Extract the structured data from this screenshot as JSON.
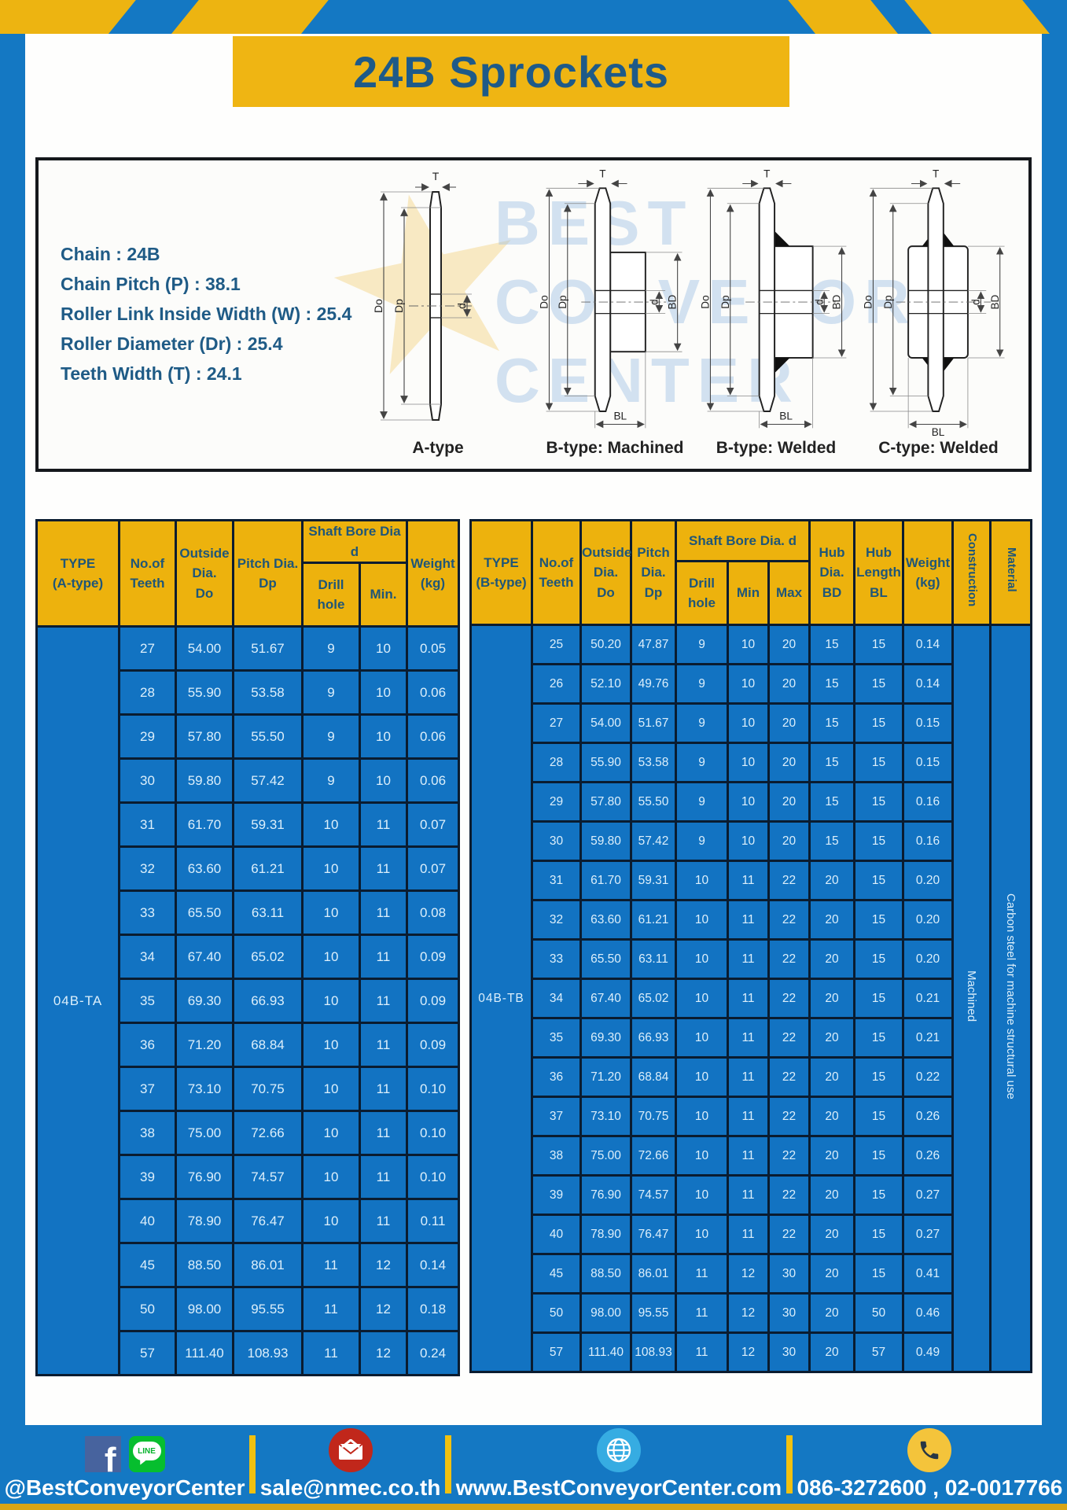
{
  "page": {
    "title": "24B Sprockets"
  },
  "specs": {
    "lines": [
      "Chain  : 24B",
      "Chain Pitch (P)  :  38.1",
      "Roller Link Inside Width (W)  :  25.4",
      "Roller Diameter (Dr)  : 25.4",
      "Teeth Width (T)  :  24.1"
    ]
  },
  "diagram": {
    "watermark": {
      "line1": "BEST",
      "line2": "CONVEYOR",
      "line3": "CENTER",
      "star": "★"
    },
    "dims": {
      "T": "T",
      "Do": "Do",
      "Dp": "Dp",
      "d": "d",
      "BD": "BD",
      "BL": "BL"
    },
    "labels": {
      "a": "A-type",
      "b_machined": "B-type: Machined",
      "b_welded": "B-type: Welded",
      "c_welded": "C-type: Welded"
    }
  },
  "table_a": {
    "type_label": "04B-TA",
    "headers": {
      "type": "TYPE\n(A-type)",
      "teeth": "No.of\nTeeth",
      "outside": "Outside\nDia.\nDo",
      "pitch": "Pitch Dia.\nDp",
      "shaft_bore": "Shaft Bore Dia d",
      "drill": "Drill hole",
      "min": "Min.",
      "weight": "Weight\n(kg)"
    },
    "rows": [
      [
        "27",
        "54.00",
        "51.67",
        "9",
        "10",
        "0.05"
      ],
      [
        "28",
        "55.90",
        "53.58",
        "9",
        "10",
        "0.06"
      ],
      [
        "29",
        "57.80",
        "55.50",
        "9",
        "10",
        "0.06"
      ],
      [
        "30",
        "59.80",
        "57.42",
        "9",
        "10",
        "0.06"
      ],
      [
        "31",
        "61.70",
        "59.31",
        "10",
        "11",
        "0.07"
      ],
      [
        "32",
        "63.60",
        "61.21",
        "10",
        "11",
        "0.07"
      ],
      [
        "33",
        "65.50",
        "63.11",
        "10",
        "11",
        "0.08"
      ],
      [
        "34",
        "67.40",
        "65.02",
        "10",
        "11",
        "0.09"
      ],
      [
        "35",
        "69.30",
        "66.93",
        "10",
        "11",
        "0.09"
      ],
      [
        "36",
        "71.20",
        "68.84",
        "10",
        "11",
        "0.09"
      ],
      [
        "37",
        "73.10",
        "70.75",
        "10",
        "11",
        "0.10"
      ],
      [
        "38",
        "75.00",
        "72.66",
        "10",
        "11",
        "0.10"
      ],
      [
        "39",
        "76.90",
        "74.57",
        "10",
        "11",
        "0.10"
      ],
      [
        "40",
        "78.90",
        "76.47",
        "10",
        "11",
        "0.11"
      ],
      [
        "45",
        "88.50",
        "86.01",
        "11",
        "12",
        "0.14"
      ],
      [
        "50",
        "98.00",
        "95.55",
        "11",
        "12",
        "0.18"
      ],
      [
        "57",
        "111.40",
        "108.93",
        "11",
        "12",
        "0.24"
      ]
    ]
  },
  "table_b": {
    "type_label": "04B-TB",
    "headers": {
      "type": "TYPE\n(B-type)",
      "teeth": "No.of\nTeeth",
      "outside": "Outside\nDia.\nDo",
      "pitch": "Pitch\nDia.\nDp",
      "shaft_bore": "Shaft Bore Dia.  d",
      "drill": "Drill hole",
      "min": "Min",
      "max": "Max",
      "hub_dia": "Hub\nDia.\nBD",
      "hub_len": "Hub\nLength\nBL",
      "weight": "Weight\n(kg)",
      "construction": "Construction",
      "material": "Material"
    },
    "construction_value": "Machined",
    "material_value": "Carbon steel for machine structural use",
    "rows": [
      [
        "25",
        "50.20",
        "47.87",
        "9",
        "10",
        "20",
        "15",
        "15",
        "0.14"
      ],
      [
        "26",
        "52.10",
        "49.76",
        "9",
        "10",
        "20",
        "15",
        "15",
        "0.14"
      ],
      [
        "27",
        "54.00",
        "51.67",
        "9",
        "10",
        "20",
        "15",
        "15",
        "0.15"
      ],
      [
        "28",
        "55.90",
        "53.58",
        "9",
        "10",
        "20",
        "15",
        "15",
        "0.15"
      ],
      [
        "29",
        "57.80",
        "55.50",
        "9",
        "10",
        "20",
        "15",
        "15",
        "0.16"
      ],
      [
        "30",
        "59.80",
        "57.42",
        "9",
        "10",
        "20",
        "15",
        "15",
        "0.16"
      ],
      [
        "31",
        "61.70",
        "59.31",
        "10",
        "11",
        "22",
        "20",
        "15",
        "0.20"
      ],
      [
        "32",
        "63.60",
        "61.21",
        "10",
        "11",
        "22",
        "20",
        "15",
        "0.20"
      ],
      [
        "33",
        "65.50",
        "63.11",
        "10",
        "11",
        "22",
        "20",
        "15",
        "0.20"
      ],
      [
        "34",
        "67.40",
        "65.02",
        "10",
        "11",
        "22",
        "20",
        "15",
        "0.21"
      ],
      [
        "35",
        "69.30",
        "66.93",
        "10",
        "11",
        "22",
        "20",
        "15",
        "0.21"
      ],
      [
        "36",
        "71.20",
        "68.84",
        "10",
        "11",
        "22",
        "20",
        "15",
        "0.22"
      ],
      [
        "37",
        "73.10",
        "70.75",
        "10",
        "11",
        "22",
        "20",
        "15",
        "0.26"
      ],
      [
        "38",
        "75.00",
        "72.66",
        "10",
        "11",
        "22",
        "20",
        "15",
        "0.26"
      ],
      [
        "39",
        "76.90",
        "74.57",
        "10",
        "11",
        "22",
        "20",
        "15",
        "0.27"
      ],
      [
        "40",
        "78.90",
        "76.47",
        "10",
        "11",
        "22",
        "20",
        "15",
        "0.27"
      ],
      [
        "45",
        "88.50",
        "86.01",
        "11",
        "12",
        "30",
        "20",
        "15",
        "0.41"
      ],
      [
        "50",
        "98.00",
        "95.55",
        "11",
        "12",
        "30",
        "20",
        "50",
        "0.46"
      ],
      [
        "57",
        "111.40",
        "108.93",
        "11",
        "12",
        "30",
        "20",
        "57",
        "0.49"
      ]
    ]
  },
  "footer": {
    "fb_letter": "f",
    "line_label": "LINE",
    "social_handle": "@BestConveyorCenter",
    "email": "sale@nmec.co.th",
    "website": "www.BestConveyorCenter.com",
    "phones": "086-3272600 , 02-0017766"
  },
  "colors": {
    "frame_blue": "#1478C3",
    "cell_blue": "#1273C2",
    "header_yellow": "#EDB20D",
    "banner_yellow": "#EFB513",
    "border_navy": "#0A1C30",
    "title_text": "#1E5A88",
    "header_text": "#1F5678",
    "body_text": "#DCEFFB"
  }
}
